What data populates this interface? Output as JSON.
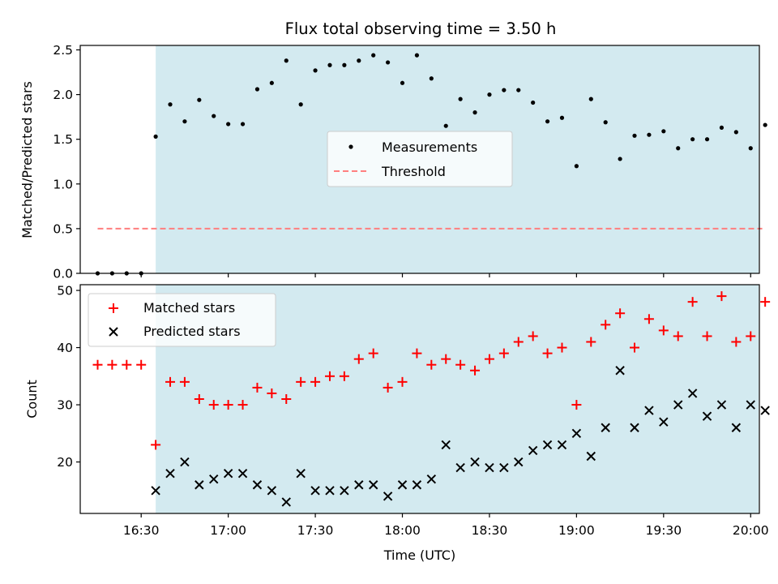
{
  "chart_data": {
    "type": "scatter",
    "title": "Flux total observing time = 3.50 h",
    "xlabel": "Time (UTC)",
    "x_ticks": [
      "16:30",
      "17:00",
      "17:30",
      "18:00",
      "18:30",
      "19:00",
      "19:30",
      "20:00"
    ],
    "x_tick_minutes": [
      990,
      1020,
      1050,
      1080,
      1110,
      1140,
      1170,
      1200
    ],
    "xlim_minutes": [
      969,
      1203
    ],
    "shaded_span_minutes": [
      995,
      1205
    ],
    "shade_color": "#d3eaf0",
    "times_minutes": [
      985,
      990,
      995,
      1000,
      1005,
      1010,
      1015,
      1020,
      1025,
      1030,
      1035,
      1040,
      1045,
      1050,
      1055,
      1060,
      1065,
      1070,
      1075,
      1080,
      1085,
      1090,
      1095,
      1100,
      1105,
      1110,
      1115,
      1120,
      1125,
      1130,
      1135,
      1140,
      1145,
      1150,
      1155,
      1160,
      1165,
      1170,
      1175,
      1180,
      1185,
      1190,
      1195,
      1200,
      1205
    ],
    "top_panel": {
      "ylabel": "Matched/Predicted stars",
      "ylim": [
        0,
        2.55
      ],
      "y_ticks": [
        "0.0",
        "0.5",
        "1.0",
        "1.5",
        "2.0",
        "2.5"
      ],
      "legend": [
        "Measurements",
        "Threshold"
      ],
      "legend_position": "center-right",
      "threshold": {
        "value": 0.5,
        "start_minutes": 975,
        "end_minutes": 1204,
        "color": "#ff7f7f"
      },
      "early_zero_times_minutes": [
        975,
        980,
        985,
        990
      ],
      "measurements": [
        1.53,
        1.89,
        1.7,
        1.94,
        1.76,
        1.67,
        1.67,
        2.06,
        2.13,
        2.38,
        1.89,
        2.27,
        2.33,
        2.33,
        2.38,
        2.44,
        2.36,
        2.13,
        2.44,
        2.18,
        1.65,
        1.95,
        1.8,
        2.0,
        2.05,
        2.05,
        1.91,
        1.7,
        1.74,
        1.2,
        1.95,
        1.69,
        1.28,
        1.54,
        1.55,
        1.59,
        1.4,
        1.5,
        1.5,
        1.63,
        1.58,
        1.4,
        1.66
      ]
    },
    "bottom_panel": {
      "ylabel": "Count",
      "ylim": [
        11,
        51
      ],
      "y_ticks": [
        "20",
        "30",
        "40",
        "50"
      ],
      "legend": [
        "Matched stars",
        "Predicted stars"
      ],
      "legend_position": "top-left",
      "early_times_minutes": [
        975,
        980,
        985,
        990
      ],
      "early_matched": [
        37,
        37,
        37,
        37
      ],
      "matched_color": "#ff0000",
      "predicted_color": "#000000",
      "matched": [
        23,
        34,
        34,
        31,
        30,
        30,
        30,
        33,
        32,
        31,
        34,
        34,
        35,
        35,
        38,
        39,
        33,
        34,
        39,
        37,
        38,
        37,
        36,
        38,
        39,
        41,
        42,
        39,
        40,
        30,
        41,
        44,
        46,
        40,
        45,
        43,
        42,
        48,
        42,
        49,
        41,
        42,
        48
      ],
      "predicted": [
        15,
        18,
        20,
        16,
        17,
        18,
        18,
        16,
        15,
        13,
        18,
        15,
        15,
        15,
        16,
        16,
        14,
        16,
        16,
        17,
        23,
        19,
        20,
        19,
        19,
        20,
        22,
        23,
        23,
        25,
        21,
        26,
        36,
        26,
        29,
        27,
        30,
        32,
        28,
        30,
        26,
        30,
        29
      ]
    }
  }
}
